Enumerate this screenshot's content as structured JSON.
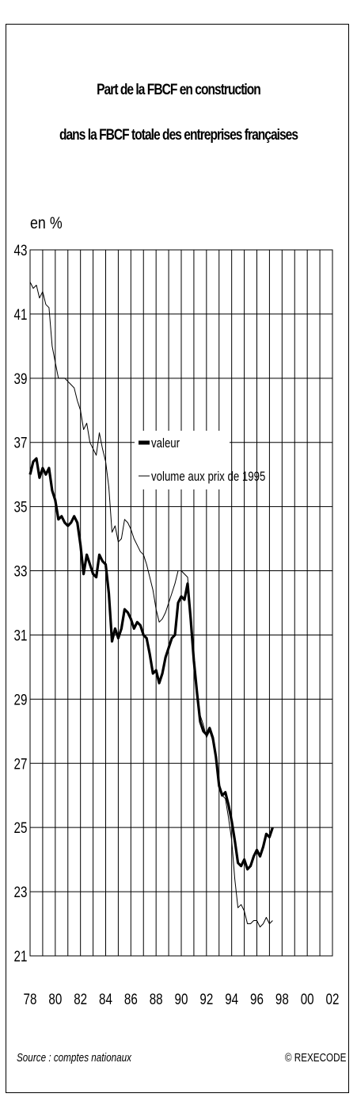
{
  "chart_data": {
    "type": "line",
    "title_line1": "Part de la FBCF en construction",
    "title_line2": "dans la FBCF totale des entreprises françaises",
    "ylabel": "en %",
    "ylim": [
      21,
      43
    ],
    "yticks": [
      "43",
      "41",
      "39",
      "37",
      "35",
      "33",
      "31",
      "29",
      "27",
      "25",
      "23",
      "21"
    ],
    "xlim": [
      1978,
      2002
    ],
    "xticks": [
      "78",
      "80",
      "82",
      "84",
      "86",
      "88",
      "90",
      "92",
      "94",
      "96",
      "98",
      "00",
      "02"
    ],
    "grid": true,
    "legend_position": "center",
    "series": [
      {
        "name": "valeur",
        "style": "thick",
        "color": "#000000",
        "points": [
          [
            1978.0,
            36.0
          ],
          [
            1978.25,
            36.4
          ],
          [
            1978.5,
            36.5
          ],
          [
            1978.75,
            35.9
          ],
          [
            1979.0,
            36.2
          ],
          [
            1979.25,
            36.0
          ],
          [
            1979.5,
            36.2
          ],
          [
            1979.75,
            35.5
          ],
          [
            1980.0,
            35.2
          ],
          [
            1980.25,
            34.6
          ],
          [
            1980.5,
            34.7
          ],
          [
            1980.75,
            34.5
          ],
          [
            1981.0,
            34.4
          ],
          [
            1981.25,
            34.5
          ],
          [
            1981.5,
            34.7
          ],
          [
            1981.75,
            34.5
          ],
          [
            1982.0,
            33.8
          ],
          [
            1982.25,
            32.9
          ],
          [
            1982.5,
            33.5
          ],
          [
            1982.75,
            33.2
          ],
          [
            1983.0,
            32.9
          ],
          [
            1983.25,
            32.8
          ],
          [
            1983.5,
            33.5
          ],
          [
            1983.75,
            33.3
          ],
          [
            1984.0,
            33.2
          ],
          [
            1984.25,
            32.3
          ],
          [
            1984.5,
            30.8
          ],
          [
            1984.75,
            31.2
          ],
          [
            1985.0,
            30.9
          ],
          [
            1985.25,
            31.2
          ],
          [
            1985.5,
            31.8
          ],
          [
            1985.75,
            31.7
          ],
          [
            1986.0,
            31.5
          ],
          [
            1986.25,
            31.2
          ],
          [
            1986.5,
            31.4
          ],
          [
            1986.75,
            31.3
          ],
          [
            1987.0,
            31.0
          ],
          [
            1987.25,
            30.9
          ],
          [
            1987.5,
            30.4
          ],
          [
            1987.75,
            29.8
          ],
          [
            1988.0,
            29.9
          ],
          [
            1988.25,
            29.5
          ],
          [
            1988.5,
            29.8
          ],
          [
            1988.75,
            30.3
          ],
          [
            1989.0,
            30.6
          ],
          [
            1989.25,
            30.9
          ],
          [
            1989.5,
            31.0
          ],
          [
            1989.75,
            32.0
          ],
          [
            1990.0,
            32.2
          ],
          [
            1990.25,
            32.1
          ],
          [
            1990.5,
            32.6
          ],
          [
            1990.75,
            31.5
          ],
          [
            1991.0,
            30.2
          ],
          [
            1991.25,
            29.2
          ],
          [
            1991.5,
            28.3
          ],
          [
            1991.75,
            28.0
          ],
          [
            1992.0,
            27.9
          ],
          [
            1992.25,
            28.1
          ],
          [
            1992.5,
            27.8
          ],
          [
            1992.75,
            27.2
          ],
          [
            1993.0,
            26.3
          ],
          [
            1993.25,
            26.0
          ],
          [
            1993.5,
            26.1
          ],
          [
            1993.75,
            25.7
          ],
          [
            1994.0,
            25.2
          ],
          [
            1994.25,
            24.6
          ],
          [
            1994.5,
            23.9
          ],
          [
            1994.75,
            23.8
          ],
          [
            1995.0,
            24.0
          ],
          [
            1995.25,
            23.7
          ],
          [
            1995.5,
            23.8
          ],
          [
            1995.75,
            24.1
          ],
          [
            1996.0,
            24.3
          ],
          [
            1996.25,
            24.1
          ],
          [
            1996.5,
            24.4
          ],
          [
            1996.75,
            24.8
          ],
          [
            1997.0,
            24.7
          ],
          [
            1997.25,
            25.0
          ]
        ]
      },
      {
        "name": "volume aux prix de 1995",
        "style": "thin",
        "color": "#000000",
        "points": [
          [
            1978.0,
            42.0
          ],
          [
            1978.25,
            41.8
          ],
          [
            1978.5,
            41.9
          ],
          [
            1978.75,
            41.5
          ],
          [
            1979.0,
            41.7
          ],
          [
            1979.25,
            41.3
          ],
          [
            1979.5,
            41.2
          ],
          [
            1979.75,
            40.0
          ],
          [
            1980.0,
            39.5
          ],
          [
            1980.25,
            39.0
          ],
          [
            1980.5,
            39.0
          ],
          [
            1980.75,
            39.0
          ],
          [
            1981.0,
            38.9
          ],
          [
            1981.25,
            38.8
          ],
          [
            1981.5,
            38.7
          ],
          [
            1981.75,
            38.3
          ],
          [
            1982.0,
            38.0
          ],
          [
            1982.25,
            37.4
          ],
          [
            1982.5,
            37.6
          ],
          [
            1982.75,
            37.0
          ],
          [
            1983.0,
            36.8
          ],
          [
            1983.25,
            36.6
          ],
          [
            1983.5,
            37.3
          ],
          [
            1983.75,
            36.8
          ],
          [
            1984.0,
            36.4
          ],
          [
            1984.25,
            35.6
          ],
          [
            1984.5,
            34.2
          ],
          [
            1984.75,
            34.4
          ],
          [
            1985.0,
            33.9
          ],
          [
            1985.25,
            34.0
          ],
          [
            1985.5,
            34.6
          ],
          [
            1985.75,
            34.5
          ],
          [
            1986.0,
            34.3
          ],
          [
            1986.25,
            34.0
          ],
          [
            1986.5,
            33.8
          ],
          [
            1986.75,
            33.6
          ],
          [
            1987.0,
            33.5
          ],
          [
            1987.25,
            33.2
          ],
          [
            1987.5,
            32.8
          ],
          [
            1987.75,
            32.4
          ],
          [
            1988.0,
            31.8
          ],
          [
            1988.25,
            31.4
          ],
          [
            1988.5,
            31.5
          ],
          [
            1988.75,
            31.7
          ],
          [
            1989.0,
            32.0
          ],
          [
            1989.25,
            32.3
          ],
          [
            1989.5,
            32.6
          ],
          [
            1989.75,
            33.0
          ],
          [
            1990.0,
            33.0
          ],
          [
            1990.25,
            32.9
          ],
          [
            1990.5,
            32.8
          ],
          [
            1990.75,
            31.7
          ],
          [
            1991.0,
            30.3
          ],
          [
            1991.25,
            29.3
          ],
          [
            1991.5,
            28.5
          ],
          [
            1991.75,
            28.2
          ],
          [
            1992.0,
            27.8
          ],
          [
            1992.25,
            28.0
          ],
          [
            1992.5,
            27.7
          ],
          [
            1992.75,
            27.2
          ],
          [
            1993.0,
            26.4
          ],
          [
            1993.25,
            26.0
          ],
          [
            1993.5,
            25.9
          ],
          [
            1993.75,
            25.3
          ],
          [
            1994.0,
            24.6
          ],
          [
            1994.25,
            23.4
          ],
          [
            1994.5,
            22.5
          ],
          [
            1994.75,
            22.6
          ],
          [
            1995.0,
            22.4
          ],
          [
            1995.25,
            22.0
          ],
          [
            1995.5,
            22.0
          ],
          [
            1995.75,
            22.1
          ],
          [
            1996.0,
            22.1
          ],
          [
            1996.25,
            21.9
          ],
          [
            1996.5,
            22.0
          ],
          [
            1996.75,
            22.2
          ],
          [
            1997.0,
            22.0
          ],
          [
            1997.25,
            22.1
          ]
        ]
      }
    ]
  },
  "footer": {
    "source": "Source : comptes nationaux",
    "copyright": "© REXECODE"
  }
}
